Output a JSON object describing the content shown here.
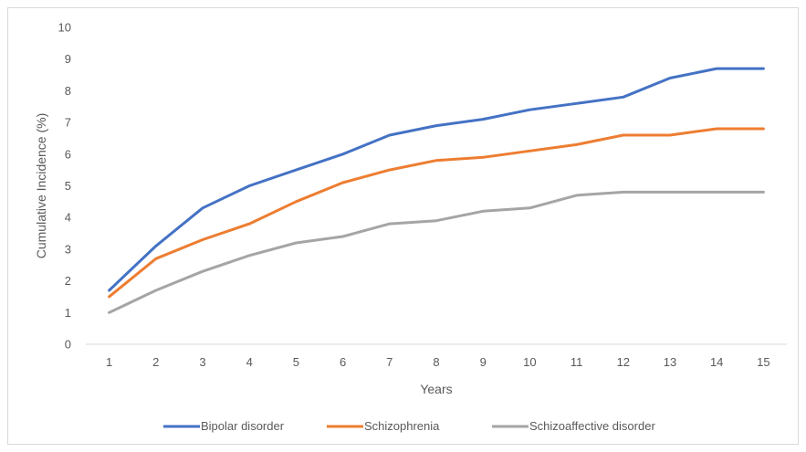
{
  "chart_data": {
    "type": "line",
    "title": "",
    "xlabel": "Years",
    "ylabel": "Cumulative Incidence (%)",
    "x": [
      1,
      2,
      3,
      4,
      5,
      6,
      7,
      8,
      9,
      10,
      11,
      12,
      13,
      14,
      15
    ],
    "ylim": [
      0,
      10
    ],
    "yticks": [
      0,
      1,
      2,
      3,
      4,
      5,
      6,
      7,
      8,
      9,
      10
    ],
    "grid": false,
    "legend_position": "bottom",
    "series": [
      {
        "name": "Bipolar disorder",
        "color": "#4472c4",
        "values": [
          1.7,
          3.1,
          4.3,
          5.0,
          5.5,
          6.0,
          6.6,
          6.9,
          7.1,
          7.4,
          7.6,
          7.8,
          8.4,
          8.7,
          8.7
        ]
      },
      {
        "name": "Schizophrenia",
        "color": "#ed7d31",
        "values": [
          1.5,
          2.7,
          3.3,
          3.8,
          4.5,
          5.1,
          5.5,
          5.8,
          5.9,
          6.1,
          6.3,
          6.6,
          6.6,
          6.8,
          6.8
        ]
      },
      {
        "name": "Schizoaffective disorder",
        "color": "#a5a5a5",
        "values": [
          1.0,
          1.7,
          2.3,
          2.8,
          3.2,
          3.4,
          3.8,
          3.9,
          4.2,
          4.3,
          4.7,
          4.8,
          4.8,
          4.8,
          4.8
        ]
      }
    ]
  }
}
